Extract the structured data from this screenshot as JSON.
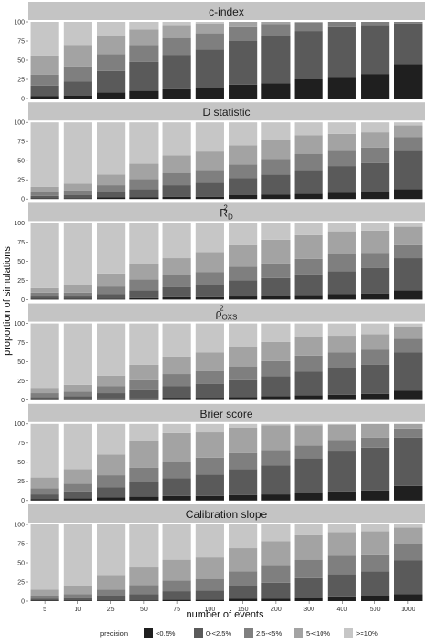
{
  "chart_data": {
    "type": "bar",
    "stacked": true,
    "xlabel": "number of events",
    "ylabel": "proportion of simulations",
    "ylim": [
      0,
      100
    ],
    "yticks": [
      "0",
      "25",
      "50",
      "75",
      "100"
    ],
    "categories": [
      "5",
      "10",
      "25",
      "50",
      "75",
      "100",
      "150",
      "200",
      "300",
      "400",
      "500",
      "1000"
    ],
    "legend": {
      "title": "precision",
      "position": "bottom",
      "items": [
        {
          "label": "<0.5%",
          "color": "#1f1f1f"
        },
        {
          "label": "0-<2.5%",
          "color": "#5a5a5a"
        },
        {
          "label": "2.5-<5%",
          "color": "#7f7f7f"
        },
        {
          "label": "5-<10%",
          "color": "#a3a3a3"
        },
        {
          "label": ">=10%",
          "color": "#c6c6c6"
        }
      ]
    },
    "panels": [
      {
        "strip": "c-index",
        "segments": [
          [
            3,
            4,
            8,
            10,
            12,
            14,
            18,
            20,
            25,
            28,
            32,
            45
          ],
          [
            14,
            18,
            28,
            38,
            45,
            50,
            57,
            62,
            63,
            65,
            64,
            53
          ],
          [
            14,
            20,
            22,
            22,
            22,
            21,
            18,
            15,
            11,
            7,
            4,
            2
          ],
          [
            25,
            28,
            24,
            20,
            17,
            13,
            7,
            3,
            1,
            0,
            0,
            0
          ],
          [
            44,
            30,
            18,
            10,
            4,
            2,
            0,
            0,
            0,
            0,
            0,
            0
          ]
        ]
      },
      {
        "strip": "D statistic",
        "segments": [
          [
            1,
            1,
            2,
            2,
            3,
            3,
            5,
            6,
            7,
            8,
            9,
            13
          ],
          [
            3,
            4,
            7,
            11,
            15,
            18,
            22,
            26,
            31,
            35,
            38,
            50
          ],
          [
            5,
            6,
            9,
            13,
            16,
            17,
            18,
            20,
            21,
            20,
            20,
            18
          ],
          [
            7,
            9,
            14,
            20,
            23,
            24,
            25,
            25,
            24,
            22,
            20,
            15
          ],
          [
            84,
            80,
            68,
            54,
            43,
            38,
            30,
            23,
            17,
            15,
            13,
            4
          ]
        ]
      },
      {
        "strip": "R",
        "strip_sub": "D",
        "strip_sup": "2",
        "segments": [
          [
            1,
            1,
            1,
            2,
            3,
            3,
            4,
            5,
            6,
            7,
            8,
            12
          ],
          [
            3,
            3,
            6,
            10,
            13,
            16,
            21,
            23,
            27,
            30,
            33,
            42
          ],
          [
            5,
            5,
            10,
            14,
            16,
            17,
            18,
            19,
            20,
            22,
            20,
            17
          ],
          [
            6,
            10,
            17,
            20,
            22,
            26,
            28,
            31,
            31,
            30,
            29,
            24
          ],
          [
            85,
            81,
            66,
            54,
            46,
            38,
            29,
            22,
            16,
            11,
            10,
            5
          ]
        ]
      },
      {
        "strip": "ρ",
        "strip_sub": "OXS",
        "strip_sup": "2",
        "segments": [
          [
            1,
            1,
            2,
            2,
            3,
            3,
            4,
            5,
            6,
            7,
            8,
            12
          ],
          [
            3,
            4,
            7,
            11,
            15,
            18,
            22,
            26,
            31,
            35,
            38,
            50
          ],
          [
            5,
            6,
            9,
            13,
            16,
            17,
            18,
            20,
            21,
            20,
            20,
            18
          ],
          [
            7,
            9,
            14,
            20,
            23,
            24,
            25,
            25,
            24,
            22,
            20,
            15
          ],
          [
            84,
            80,
            68,
            54,
            43,
            38,
            31,
            24,
            18,
            16,
            14,
            5
          ]
        ]
      },
      {
        "strip": "Brier score",
        "segments": [
          [
            2,
            3,
            4,
            5,
            6,
            6,
            7,
            8,
            10,
            12,
            13,
            19
          ],
          [
            6,
            9,
            13,
            19,
            23,
            28,
            34,
            38,
            45,
            52,
            56,
            63
          ],
          [
            8,
            10,
            16,
            19,
            21,
            22,
            21,
            20,
            17,
            15,
            13,
            12
          ],
          [
            14,
            19,
            27,
            35,
            38,
            33,
            33,
            32,
            26,
            20,
            18,
            6
          ],
          [
            70,
            59,
            40,
            22,
            12,
            11,
            5,
            2,
            2,
            1,
            0,
            0
          ]
        ]
      },
      {
        "strip": "Calibration slope",
        "segments": [
          [
            1,
            1,
            1,
            1,
            2,
            2,
            3,
            3,
            4,
            5,
            6,
            9
          ],
          [
            2,
            3,
            6,
            8,
            11,
            12,
            17,
            21,
            26,
            30,
            33,
            44
          ],
          [
            4,
            5,
            8,
            12,
            14,
            15,
            19,
            22,
            24,
            24,
            22,
            22
          ],
          [
            8,
            11,
            19,
            23,
            27,
            28,
            30,
            32,
            32,
            31,
            30,
            21
          ],
          [
            85,
            80,
            66,
            56,
            46,
            43,
            31,
            22,
            14,
            10,
            9,
            4
          ]
        ]
      }
    ]
  }
}
